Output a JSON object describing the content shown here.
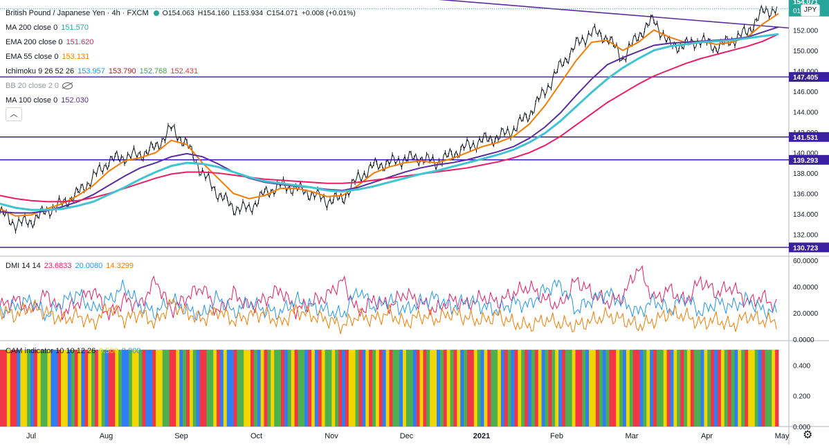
{
  "header": {
    "symbol": "British Pound / Japanese Yen · 4h · FXCM",
    "open": "O154.063",
    "high": "H154.160",
    "low": "L153.934",
    "close": "C154.071",
    "change": "+0.008 (+0.01%)"
  },
  "currency_badge": "JPY",
  "indicators": [
    {
      "label": "MA 200 close 0",
      "value": "151.570",
      "color": "#26a69a"
    },
    {
      "label": "EMA 200 close 0",
      "value": "151.620",
      "color": "#e91e63"
    },
    {
      "label": "EMA 55 close 0",
      "value": "153.131",
      "color": "#f57c00"
    },
    {
      "label": "Ichimoku 9 26 52 26",
      "values": [
        "153.957",
        "153.790",
        "152.768",
        "152.431"
      ],
      "colors": [
        "#2196f3",
        "#b71c1c",
        "#43a047",
        "#e53935"
      ]
    },
    {
      "label": "BB 20 close 2 0",
      "value": "",
      "color": "#9598a1"
    },
    {
      "label": "MA 100 close 0",
      "value": "152.030",
      "color": "#5b2c9b"
    }
  ],
  "dmi_legend": {
    "label": "DMI 14 14",
    "values": [
      "23.6833",
      "20.0080",
      "14.3299"
    ],
    "colors": [
      "#e91e63",
      "#2196f3",
      "#f57c00"
    ]
  },
  "cam_legend": {
    "label": "CAM indicator 10 10 12 26",
    "values": [
      "0.500",
      "0.000"
    ],
    "colors": [
      "#f2d600",
      "#2196f3"
    ]
  },
  "price_badges": {
    "last": "154.071",
    "countdown": "01:33:29"
  },
  "chart_data": [
    {
      "type": "line",
      "title": "British Pound / Japanese Yen · 4h · FXCM",
      "x_ticks": [
        "Jul",
        "Aug",
        "Sep",
        "Oct",
        "Nov",
        "Dec",
        "2021",
        "Feb",
        "Mar",
        "Apr",
        "May"
      ],
      "y_ticks": [
        "132.000",
        "134.000",
        "136.000",
        "138.000",
        "140.000",
        "142.000",
        "144.000",
        "146.000",
        "148.000",
        "150.000",
        "152.000",
        "154.000"
      ],
      "ylim": [
        130.0,
        154.8
      ],
      "series": [
        {
          "values": [
            134.2,
            133.0,
            133.3,
            134.3,
            135.0,
            136.0,
            137.6,
            139.2,
            139.6,
            139.8,
            140.5,
            142.4,
            140.8,
            138.0,
            136.0,
            134.6,
            134.5,
            136.0,
            136.8,
            136.5,
            136.0,
            135.3,
            135.5,
            137.5,
            138.7,
            139.0,
            139.4,
            139.5,
            139.0,
            139.8,
            140.6,
            141.2,
            141.5,
            142.3,
            143.8,
            146.0,
            148.5,
            150.5,
            151.8,
            151.3,
            149.2,
            151.5,
            153.0,
            150.5,
            150.5,
            151.0,
            150.3,
            151.0,
            151.8,
            153.8,
            154.1
          ],
          "color": "#131722"
        },
        {
          "values": [
            134.5,
            133.8,
            133.9,
            134.5,
            135.0,
            135.8,
            136.8,
            138.2,
            139.2,
            139.5,
            140.0,
            141.2,
            140.8,
            139.0,
            137.5,
            136.0,
            135.5,
            135.8,
            136.5,
            136.5,
            136.2,
            135.7,
            135.8,
            136.8,
            138.0,
            138.6,
            139.0,
            139.2,
            139.0,
            139.4,
            140.0,
            140.6,
            141.0,
            141.6,
            142.8,
            144.6,
            146.8,
            149.0,
            150.8,
            151.0,
            150.0,
            150.8,
            152.0,
            151.3,
            150.8,
            150.9,
            150.6,
            150.8,
            151.3,
            152.6,
            153.6
          ],
          "color": "#f57c00"
        },
        {
          "values": [
            134.2,
            134.1,
            134.1,
            134.3,
            134.7,
            135.2,
            135.9,
            136.8,
            137.7,
            138.5,
            139.0,
            139.6,
            139.9,
            139.6,
            138.9,
            138.1,
            137.5,
            137.1,
            136.9,
            136.7,
            136.6,
            136.4,
            136.3,
            136.6,
            137.1,
            137.6,
            138.1,
            138.5,
            138.8,
            139.0,
            139.3,
            139.7,
            140.1,
            140.6,
            141.4,
            142.5,
            143.9,
            145.6,
            147.2,
            148.6,
            149.3,
            149.9,
            150.5,
            150.7,
            150.8,
            150.9,
            151.0,
            151.1,
            151.3,
            151.8,
            152.3
          ],
          "color": "#5b2c9b"
        },
        {
          "values": [
            135.8,
            135.5,
            135.3,
            135.2,
            135.2,
            135.3,
            135.6,
            136.0,
            136.5,
            137.0,
            137.5,
            137.9,
            138.1,
            138.1,
            138.0,
            137.8,
            137.6,
            137.4,
            137.3,
            137.2,
            137.1,
            137.0,
            137.0,
            137.1,
            137.3,
            137.5,
            137.7,
            137.9,
            138.1,
            138.3,
            138.5,
            138.8,
            139.1,
            139.5,
            140.0,
            140.7,
            141.6,
            142.7,
            143.8,
            144.9,
            145.8,
            146.7,
            147.5,
            148.1,
            148.7,
            149.2,
            149.6,
            150.0,
            150.4,
            150.9,
            151.6
          ],
          "color": "#e91e63"
        },
        {
          "values": [
            135.0,
            134.6,
            134.4,
            134.4,
            134.5,
            134.8,
            135.2,
            135.9,
            136.6,
            137.4,
            138.1,
            138.7,
            139.0,
            138.9,
            138.6,
            138.1,
            137.6,
            137.2,
            137.0,
            136.8,
            136.6,
            136.3,
            136.2,
            136.4,
            136.7,
            137.1,
            137.5,
            137.9,
            138.2,
            138.6,
            139.0,
            139.4,
            139.8,
            140.3,
            141.0,
            141.9,
            143.1,
            144.5,
            145.9,
            147.2,
            148.3,
            149.2,
            150.0,
            150.4,
            150.6,
            150.8,
            150.9,
            151.0,
            151.2,
            151.4,
            151.6
          ],
          "color": "#40c4d4"
        }
      ],
      "horizontal_levels": [
        {
          "value": 147.405,
          "label": "147.405"
        },
        {
          "value": 141.531,
          "label": "141.531"
        },
        {
          "value": 139.293,
          "label": "139.293"
        },
        {
          "value": 130.723,
          "label": "130.723"
        }
      ],
      "trendline": {
        "from": [
          0.315,
          156.5
        ],
        "to": [
          1.0,
          152.2
        ],
        "color": "#5b2c9b"
      }
    },
    {
      "type": "line",
      "title": "DMI 14 14",
      "y_ticks": [
        "0.0000",
        "20.0000",
        "40.0000",
        "60.0000"
      ],
      "ylim": [
        0,
        62
      ],
      "series": [
        {
          "values": [
            25,
            30,
            22,
            35,
            20,
            28,
            38,
            18,
            30,
            26,
            45,
            22,
            32,
            40,
            20,
            35,
            25,
            30,
            38,
            22,
            28,
            33,
            45,
            20,
            30,
            25,
            35,
            28,
            22,
            30,
            26,
            32,
            28,
            35,
            40,
            30,
            25,
            45,
            35,
            28,
            32,
            55,
            30,
            38,
            28,
            45,
            35,
            40,
            28,
            32,
            24
          ],
          "color": "#e91e63"
        },
        {
          "values": [
            20,
            25,
            30,
            18,
            28,
            35,
            22,
            30,
            40,
            25,
            20,
            30,
            22,
            18,
            32,
            20,
            28,
            22,
            20,
            30,
            25,
            22,
            18,
            38,
            24,
            30,
            22,
            28,
            32,
            24,
            30,
            25,
            22,
            28,
            26,
            38,
            42,
            22,
            30,
            35,
            28,
            20,
            30,
            22,
            32,
            20,
            28,
            25,
            30,
            22,
            20
          ],
          "color": "#2196f3"
        },
        {
          "values": [
            22,
            18,
            25,
            20,
            15,
            18,
            12,
            25,
            15,
            20,
            12,
            28,
            20,
            15,
            22,
            14,
            18,
            20,
            12,
            22,
            18,
            15,
            10,
            18,
            15,
            20,
            12,
            18,
            15,
            20,
            16,
            14,
            18,
            12,
            10,
            15,
            12,
            10,
            14,
            18,
            15,
            10,
            14,
            20,
            18,
            12,
            15,
            10,
            18,
            14,
            14
          ],
          "color": "#f57c00"
        }
      ]
    },
    {
      "type": "bar",
      "title": "CAM indicator 10 10 12 26",
      "y_ticks": [
        "0.000",
        "0.200",
        "0.400"
      ],
      "ylim": [
        0,
        0.55
      ],
      "bar_value": 0.5,
      "state_colors": [
        "#f23645",
        "#f2d600",
        "#2d7ef7",
        "#4caf50"
      ],
      "states": [
        0,
        0,
        1,
        0,
        0,
        2,
        1,
        1,
        3,
        2,
        0,
        1,
        3,
        3,
        1,
        2,
        2,
        0,
        1,
        1,
        2,
        3,
        0,
        1,
        2,
        0,
        1,
        3,
        0,
        1,
        3,
        2,
        0,
        0,
        1,
        3,
        2,
        2,
        3,
        1,
        1,
        3,
        0,
        2,
        2,
        0,
        1,
        1,
        3,
        3,
        0,
        0,
        1,
        2,
        3,
        0,
        1,
        3,
        2,
        0,
        0,
        3,
        3,
        1,
        0,
        2,
        1,
        2,
        2,
        0,
        3,
        3,
        1,
        1,
        0,
        3,
        2,
        1,
        0,
        3,
        1,
        3,
        3,
        0,
        2,
        3,
        1,
        0,
        3,
        3,
        2,
        0,
        1,
        2,
        0,
        1,
        3,
        3,
        1,
        3,
        0,
        2,
        0,
        1,
        1,
        3,
        0,
        2,
        1,
        0,
        3,
        1,
        0,
        2,
        1,
        0,
        3,
        3,
        2,
        1,
        3,
        3,
        2,
        0,
        1,
        0,
        3,
        1,
        1,
        2,
        3,
        0,
        1,
        3,
        0,
        1,
        2,
        3,
        0,
        0,
        1,
        3,
        2,
        1,
        0,
        3,
        3,
        1,
        2,
        0,
        3,
        2,
        0,
        1,
        3,
        0,
        2,
        3,
        0,
        1,
        2,
        3,
        0,
        3,
        1,
        2,
        0,
        3,
        3,
        1,
        0,
        0,
        3,
        2,
        1,
        1,
        0,
        3,
        2,
        3,
        0,
        0,
        1,
        3,
        2,
        1,
        3,
        0,
        0,
        2,
        3,
        1,
        2,
        0,
        3,
        3,
        1,
        0,
        2,
        1,
        3,
        0,
        3,
        1,
        0,
        3,
        3,
        2,
        1,
        3,
        0,
        2,
        0,
        1,
        3,
        0,
        3,
        2,
        1,
        3,
        0,
        1,
        1,
        3,
        2,
        0,
        3,
        3,
        1,
        0
      ]
    }
  ]
}
